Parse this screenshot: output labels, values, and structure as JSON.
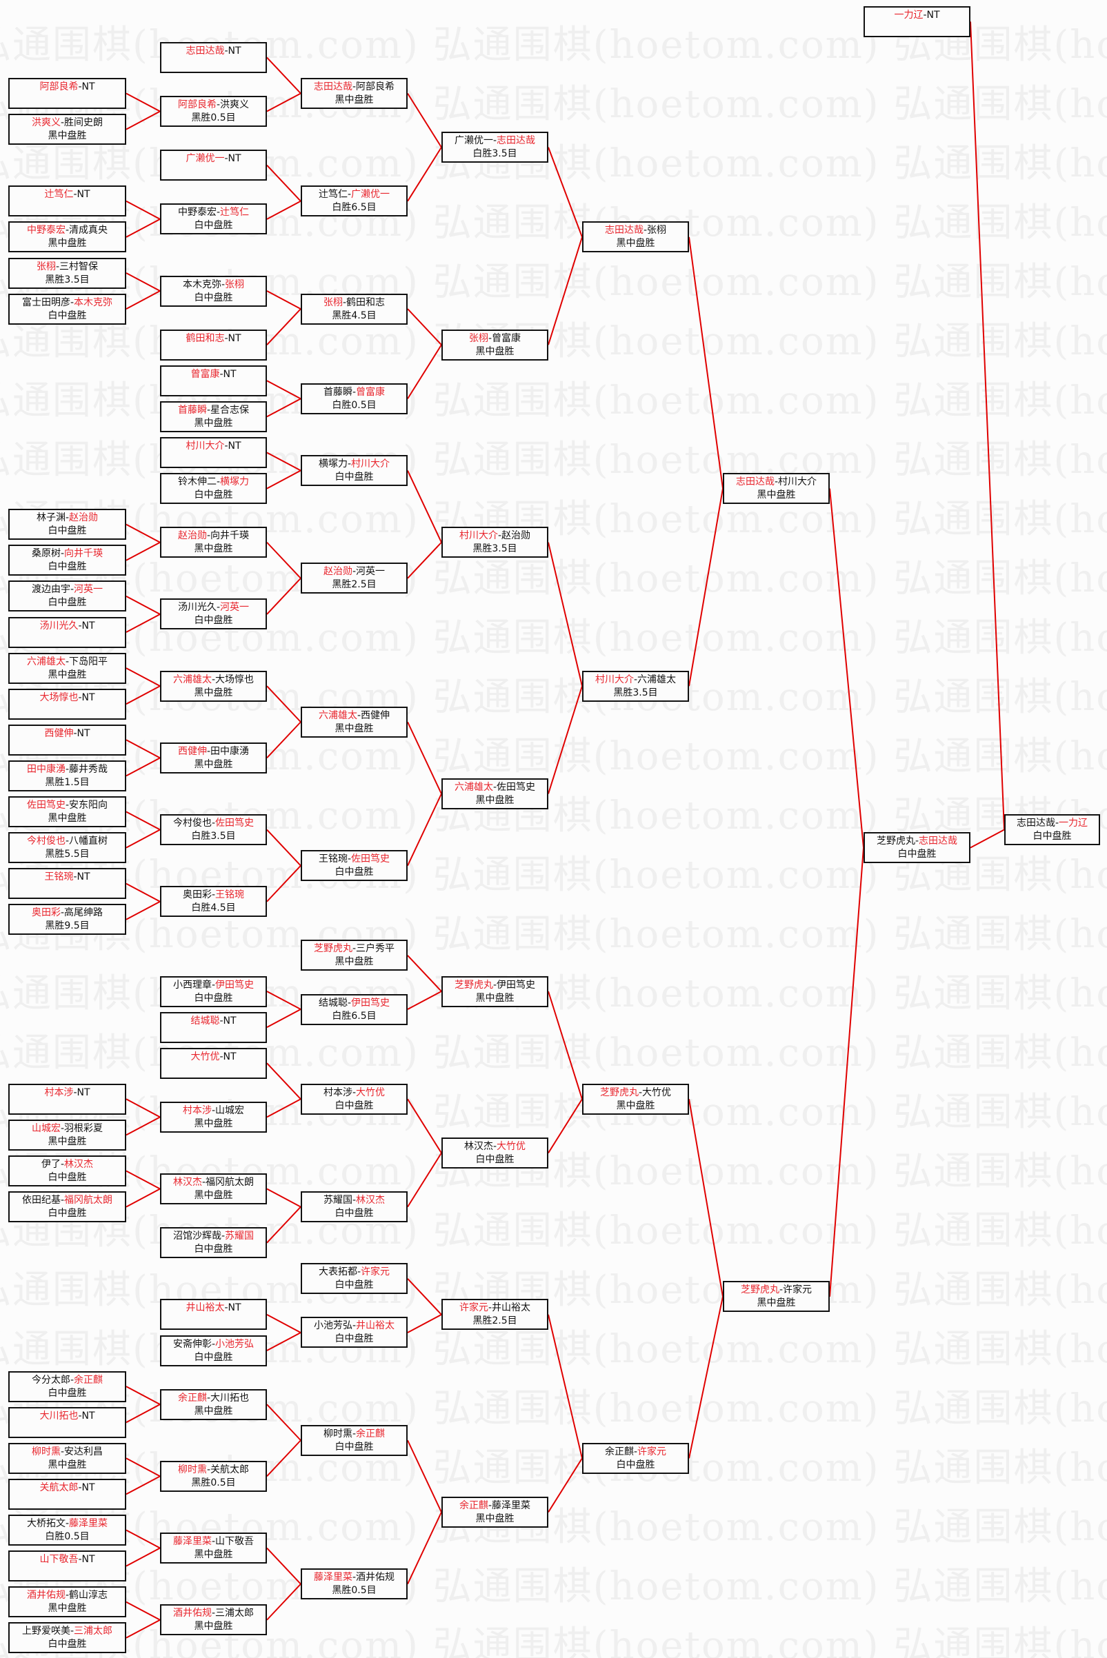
{
  "watermark": "弘通围棋(hoetom.com)",
  "colors": {
    "winner": "#e8262e",
    "connector": "#e00000",
    "border": "#111111",
    "text": "#111111"
  },
  "rounds": [
    {
      "matches": [
        {
          "p1": "阿部良希",
          "p2": "NT",
          "winner": 1,
          "result": ""
        },
        {
          "p1": "洪爽义",
          "p2": "胜间史朗",
          "winner": 1,
          "result": "黑中盘胜"
        },
        {
          "p1": "辻笃仁",
          "p2": "NT",
          "winner": 1,
          "result": ""
        },
        {
          "p1": "中野泰宏",
          "p2": "清成真央",
          "winner": 1,
          "result": "黑中盘胜"
        },
        {
          "p1": "张栩",
          "p2": "三村智保",
          "winner": 1,
          "result": "黑胜3.5目"
        },
        {
          "p1": "富士田明彦",
          "p2": "本木克弥",
          "winner": 2,
          "result": "白中盘胜"
        },
        {
          "p1": "林子渊",
          "p2": "赵治勋",
          "winner": 2,
          "result": "白中盘胜"
        },
        {
          "p1": "桑原树",
          "p2": "向井千瑛",
          "winner": 2,
          "result": "白中盘胜"
        },
        {
          "p1": "渡边由宇",
          "p2": "河英一",
          "winner": 2,
          "result": "白中盘胜"
        },
        {
          "p1": "汤川光久",
          "p2": "NT",
          "winner": 1,
          "result": ""
        },
        {
          "p1": "六浦雄太",
          "p2": "下岛阳平",
          "winner": 1,
          "result": "黑中盘胜"
        },
        {
          "p1": "大场惇也",
          "p2": "NT",
          "winner": 1,
          "result": ""
        },
        {
          "p1": "西健伸",
          "p2": "NT",
          "winner": 1,
          "result": ""
        },
        {
          "p1": "田中康湧",
          "p2": "藤井秀哉",
          "winner": 1,
          "result": "黑胜1.5目"
        },
        {
          "p1": "佐田笃史",
          "p2": "安东阳向",
          "winner": 1,
          "result": "黑中盘胜"
        },
        {
          "p1": "今村俊也",
          "p2": "八幡直树",
          "winner": 1,
          "result": "黑胜5.5目"
        },
        {
          "p1": "王铭琬",
          "p2": "NT",
          "winner": 1,
          "result": ""
        },
        {
          "p1": "奥田彩",
          "p2": "高尾绅路",
          "winner": 1,
          "result": "黑胜9.5目"
        },
        {
          "p1": "村本涉",
          "p2": "NT",
          "winner": 1,
          "result": ""
        },
        {
          "p1": "山城宏",
          "p2": "羽根彩夏",
          "winner": 1,
          "result": "黑中盘胜"
        },
        {
          "p1": "伊了",
          "p2": "林汉杰",
          "winner": 2,
          "result": "白中盘胜"
        },
        {
          "p1": "依田纪基",
          "p2": "福冈航太朗",
          "winner": 2,
          "result": "白中盘胜"
        },
        {
          "p1": "今分太郎",
          "p2": "余正麒",
          "winner": 2,
          "result": "白中盘胜"
        },
        {
          "p1": "大川拓也",
          "p2": "NT",
          "winner": 1,
          "result": ""
        },
        {
          "p1": "柳时熏",
          "p2": "安达利昌",
          "winner": 1,
          "result": "黑中盘胜"
        },
        {
          "p1": "关航太郎",
          "p2": "NT",
          "winner": 1,
          "result": ""
        },
        {
          "p1": "大桥拓文",
          "p2": "藤泽里菜",
          "winner": 2,
          "result": "白胜0.5目"
        },
        {
          "p1": "山下敬吾",
          "p2": "NT",
          "winner": 1,
          "result": ""
        },
        {
          "p1": "酒井佑规",
          "p2": "鹤山淳志",
          "winner": 1,
          "result": "黑中盘胜"
        },
        {
          "p1": "上野爱咲美",
          "p2": "三浦太郎",
          "winner": 2,
          "result": "白中盘胜"
        }
      ]
    },
    {
      "matches": [
        {
          "p1": "志田达哉",
          "p2": "NT",
          "winner": 1,
          "result": ""
        },
        {
          "p1": "阿部良希",
          "p2": "洪爽义",
          "winner": 1,
          "result": "黑胜0.5目"
        },
        {
          "p1": "广濑优一",
          "p2": "NT",
          "winner": 1,
          "result": ""
        },
        {
          "p1": "中野泰宏",
          "p2": "辻笃仁",
          "winner": 2,
          "result": "白中盘胜"
        },
        {
          "p1": "本木克弥",
          "p2": "张栩",
          "winner": 2,
          "result": "白中盘胜"
        },
        {
          "p1": "鹤田和志",
          "p2": "NT",
          "winner": 1,
          "result": ""
        },
        {
          "p1": "曾富康",
          "p2": "NT",
          "winner": 1,
          "result": ""
        },
        {
          "p1": "首藤瞬",
          "p2": "星合志保",
          "winner": 1,
          "result": "黑中盘胜"
        },
        {
          "p1": "村川大介",
          "p2": "NT",
          "winner": 1,
          "result": ""
        },
        {
          "p1": "铃木伸二",
          "p2": "横塚力",
          "winner": 2,
          "result": "白中盘胜"
        },
        {
          "p1": "赵治勋",
          "p2": "向井千瑛",
          "winner": 1,
          "result": "黑中盘胜"
        },
        {
          "p1": "汤川光久",
          "p2": "河英一",
          "winner": 2,
          "result": "白中盘胜"
        },
        {
          "p1": "六浦雄太",
          "p2": "大场惇也",
          "winner": 1,
          "result": "黑中盘胜"
        },
        {
          "p1": "西健伸",
          "p2": "田中康湧",
          "winner": 1,
          "result": "黑中盘胜"
        },
        {
          "p1": "今村俊也",
          "p2": "佐田笃史",
          "winner": 2,
          "result": "白胜3.5目"
        },
        {
          "p1": "奥田彩",
          "p2": "王铭琬",
          "winner": 2,
          "result": "白胜4.5目"
        },
        {
          "p1": "小西理章",
          "p2": "伊田笃史",
          "winner": 2,
          "result": "白中盘胜"
        },
        {
          "p1": "结城聪",
          "p2": "NT",
          "winner": 1,
          "result": ""
        },
        {
          "p1": "大竹优",
          "p2": "NT",
          "winner": 1,
          "result": ""
        },
        {
          "p1": "村本涉",
          "p2": "山城宏",
          "winner": 1,
          "result": "黑中盘胜"
        },
        {
          "p1": "林汉杰",
          "p2": "福冈航太朗",
          "winner": 1,
          "result": "黑中盘胜"
        },
        {
          "p1": "沼馆沙辉哉",
          "p2": "苏耀国",
          "winner": 2,
          "result": "白中盘胜"
        },
        {
          "p1": "井山裕太",
          "p2": "NT",
          "winner": 1,
          "result": ""
        },
        {
          "p1": "安斋伸彰",
          "p2": "小池芳弘",
          "winner": 2,
          "result": "白中盘胜"
        },
        {
          "p1": "余正麒",
          "p2": "大川拓也",
          "winner": 1,
          "result": "黑中盘胜"
        },
        {
          "p1": "柳时熏",
          "p2": "关航太郎",
          "winner": 1,
          "result": "黑胜0.5目"
        },
        {
          "p1": "藤泽里菜",
          "p2": "山下敬吾",
          "winner": 1,
          "result": "黑中盘胜"
        },
        {
          "p1": "酒井佑规",
          "p2": "三浦太郎",
          "winner": 1,
          "result": "黑中盘胜"
        }
      ]
    },
    {
      "matches": [
        {
          "p1": "志田达哉",
          "p2": "阿部良希",
          "winner": 1,
          "result": "黑中盘胜"
        },
        {
          "p1": "辻笃仁",
          "p2": "广濑优一",
          "winner": 2,
          "result": "白胜6.5目"
        },
        {
          "p1": "张栩",
          "p2": "鹤田和志",
          "winner": 1,
          "result": "黑胜4.5目"
        },
        {
          "p1": "首藤瞬",
          "p2": "曾富康",
          "winner": 2,
          "result": "白胜0.5目"
        },
        {
          "p1": "横塚力",
          "p2": "村川大介",
          "winner": 2,
          "result": "白中盘胜"
        },
        {
          "p1": "赵治勋",
          "p2": "河英一",
          "winner": 1,
          "result": "黑胜2.5目"
        },
        {
          "p1": "六浦雄太",
          "p2": "西健伸",
          "winner": 1,
          "result": "黑中盘胜"
        },
        {
          "p1": "王铭琬",
          "p2": "佐田笃史",
          "winner": 2,
          "result": "白中盘胜"
        },
        {
          "p1": "芝野虎丸",
          "p2": "三户秀平",
          "winner": 1,
          "result": "黑中盘胜"
        },
        {
          "p1": "结城聪",
          "p2": "伊田笃史",
          "winner": 2,
          "result": "白胜6.5目"
        },
        {
          "p1": "村本涉",
          "p2": "大竹优",
          "winner": 2,
          "result": "白中盘胜"
        },
        {
          "p1": "苏耀国",
          "p2": "林汉杰",
          "winner": 2,
          "result": "白中盘胜"
        },
        {
          "p1": "大表拓都",
          "p2": "许家元",
          "winner": 2,
          "result": "白中盘胜"
        },
        {
          "p1": "小池芳弘",
          "p2": "井山裕太",
          "winner": 2,
          "result": "白中盘胜"
        },
        {
          "p1": "柳时熏",
          "p2": "余正麒",
          "winner": 2,
          "result": "白中盘胜"
        },
        {
          "p1": "藤泽里菜",
          "p2": "酒井佑规",
          "winner": 1,
          "result": "黑胜0.5目"
        }
      ]
    },
    {
      "matches": [
        {
          "p1": "广濑优一",
          "p2": "志田达哉",
          "winner": 2,
          "result": "白胜3.5目"
        },
        {
          "p1": "张栩",
          "p2": "曾富康",
          "winner": 1,
          "result": "黑中盘胜"
        },
        {
          "p1": "村川大介",
          "p2": "赵治勋",
          "winner": 1,
          "result": "黑胜3.5目"
        },
        {
          "p1": "六浦雄太",
          "p2": "佐田笃史",
          "winner": 1,
          "result": "黑中盘胜"
        },
        {
          "p1": "芝野虎丸",
          "p2": "伊田笃史",
          "winner": 1,
          "result": "黑中盘胜"
        },
        {
          "p1": "林汉杰",
          "p2": "大竹优",
          "winner": 2,
          "result": "白中盘胜"
        },
        {
          "p1": "许家元",
          "p2": "井山裕太",
          "winner": 1,
          "result": "黑胜2.5目"
        },
        {
          "p1": "余正麒",
          "p2": "藤泽里菜",
          "winner": 1,
          "result": "黑中盘胜"
        }
      ]
    },
    {
      "matches": [
        {
          "p1": "志田达哉",
          "p2": "张栩",
          "winner": 1,
          "result": "黑中盘胜"
        },
        {
          "p1": "村川大介",
          "p2": "六浦雄太",
          "winner": 1,
          "result": "黑胜3.5目"
        },
        {
          "p1": "芝野虎丸",
          "p2": "大竹优",
          "winner": 1,
          "result": "黑中盘胜"
        },
        {
          "p1": "余正麒",
          "p2": "许家元",
          "winner": 2,
          "result": "白中盘胜"
        }
      ]
    },
    {
      "matches": [
        {
          "p1": "志田达哉",
          "p2": "村川大介",
          "winner": 1,
          "result": "黑中盘胜"
        },
        {
          "p1": "芝野虎丸",
          "p2": "许家元",
          "winner": 1,
          "result": "黑中盘胜"
        }
      ]
    },
    {
      "matches": [
        {
          "p1": "一力辽",
          "p2": "NT",
          "winner": 1,
          "result": ""
        },
        {
          "p1": "芝野虎丸",
          "p2": "志田达哉",
          "winner": 2,
          "result": "白中盘胜"
        }
      ]
    },
    {
      "matches": [
        {
          "p1": "志田达哉",
          "p2": "一力辽",
          "winner": 2,
          "result": "白中盘胜"
        }
      ]
    }
  ]
}
